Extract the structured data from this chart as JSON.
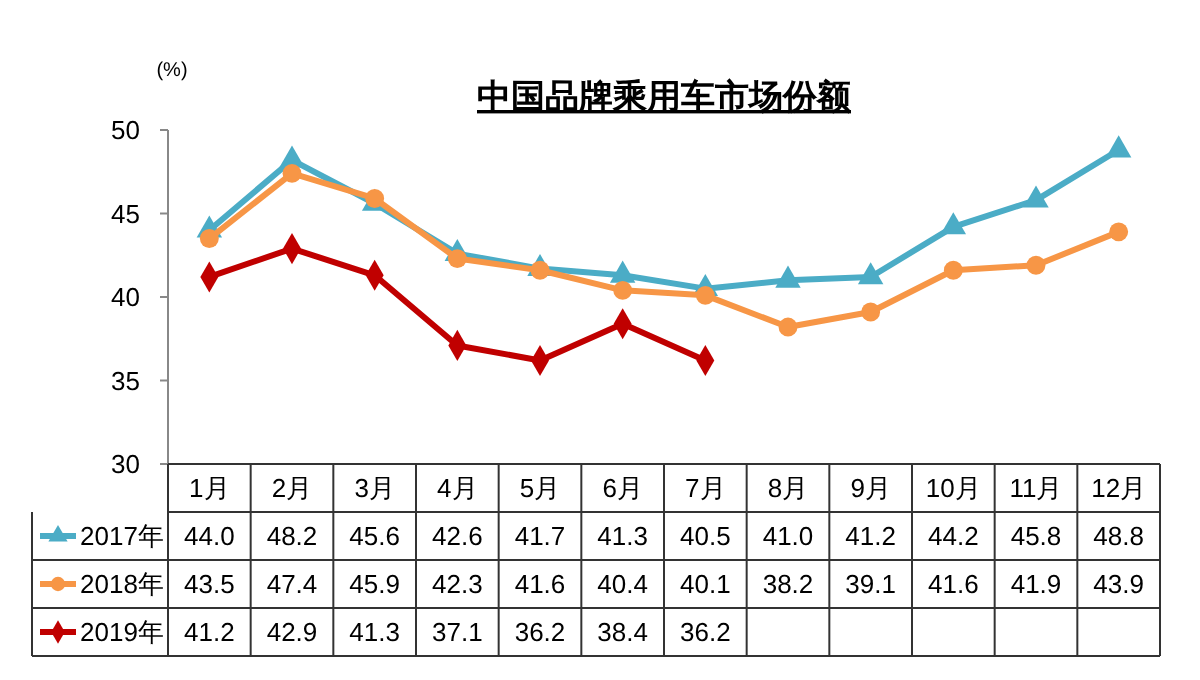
{
  "chart_data": {
    "type": "line",
    "title": "中国品牌乘用车市场份额",
    "ylabel": "(%)",
    "categories": [
      "1月",
      "2月",
      "3月",
      "4月",
      "5月",
      "6月",
      "7月",
      "8月",
      "9月",
      "10月",
      "11月",
      "12月"
    ],
    "series": [
      {
        "name": "2017年",
        "color": "#4bacc6",
        "marker": "triangle",
        "values": [
          44.0,
          48.2,
          45.6,
          42.6,
          41.7,
          41.3,
          40.5,
          41.0,
          41.2,
          44.2,
          45.8,
          48.8
        ],
        "value_labels": [
          "44.0",
          "48.2",
          "45.6",
          "42.6",
          "41.7",
          "41.3",
          "40.5",
          "41.0",
          "41.2",
          "44.2",
          "45.8",
          "48.8"
        ]
      },
      {
        "name": "2018年",
        "color": "#f79646",
        "marker": "circle",
        "values": [
          43.5,
          47.4,
          45.9,
          42.3,
          41.6,
          40.4,
          40.1,
          38.2,
          39.1,
          41.6,
          41.9,
          43.9
        ],
        "value_labels": [
          "43.5",
          "47.4",
          "45.9",
          "42.3",
          "41.6",
          "40.4",
          "40.1",
          "38.2",
          "39.1",
          "41.6",
          "41.9",
          "43.9"
        ]
      },
      {
        "name": "2019年",
        "color": "#c00000",
        "marker": "diamond",
        "values": [
          41.2,
          42.9,
          41.3,
          37.1,
          36.2,
          38.4,
          36.2,
          null,
          null,
          null,
          null,
          null
        ],
        "value_labels": [
          "41.2",
          "42.9",
          "41.3",
          "37.1",
          "36.2",
          "38.4",
          "36.2",
          null,
          null,
          null,
          null,
          null
        ]
      }
    ],
    "ylim": [
      30,
      50
    ],
    "yticks": [
      30,
      35,
      40,
      45,
      50
    ],
    "legend": "bottom",
    "line_style": "solid"
  }
}
